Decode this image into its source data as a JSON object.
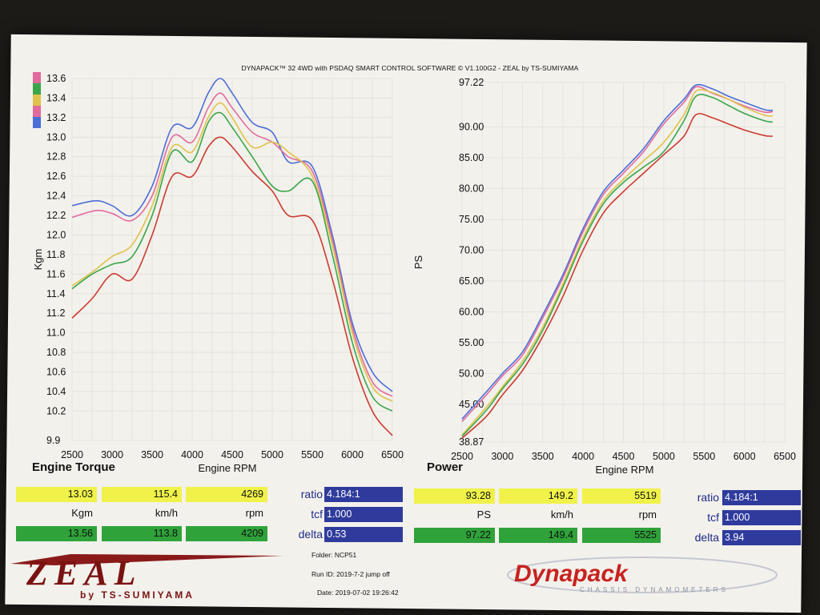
{
  "header": {
    "title": "DYNAPACK™ 32 4WD with PSDAQ SMART CONTROL SOFTWARE © V1.100G2 - ZEAL by TS-SUMIYAMA"
  },
  "chart_data": [
    {
      "type": "line",
      "title": "Engine Torque",
      "xlabel": "Engine RPM",
      "ylabel": "Kgm",
      "xlim": [
        2500,
        6500
      ],
      "ylim": [
        9.9,
        13.6
      ],
      "xticks": [
        "2500",
        "3000",
        "3500",
        "4000",
        "4500",
        "5000",
        "5500",
        "6000",
        "6500"
      ],
      "yticks": [
        "9.9",
        "10.2",
        "10.4",
        "10.6",
        "10.8",
        "11.0",
        "11.2",
        "11.4",
        "11.6",
        "11.8",
        "12.0",
        "12.2",
        "12.4",
        "12.6",
        "12.8",
        "13.0",
        "13.2",
        "13.4",
        "13.6"
      ],
      "series": [
        {
          "color": "#4a6ed6",
          "points": [
            [
              2500,
              12.3
            ],
            [
              2800,
              12.35
            ],
            [
              3000,
              12.3
            ],
            [
              3250,
              12.2
            ],
            [
              3500,
              12.5
            ],
            [
              3750,
              13.1
            ],
            [
              4000,
              13.1
            ],
            [
              4200,
              13.45
            ],
            [
              4350,
              13.6
            ],
            [
              4500,
              13.45
            ],
            [
              4750,
              13.15
            ],
            [
              5000,
              13.05
            ],
            [
              5200,
              12.75
            ],
            [
              5500,
              12.7
            ],
            [
              5750,
              12.0
            ],
            [
              6000,
              11.1
            ],
            [
              6250,
              10.6
            ],
            [
              6500,
              10.4
            ]
          ]
        },
        {
          "color": "#e36a9c",
          "points": [
            [
              2500,
              12.18
            ],
            [
              2800,
              12.25
            ],
            [
              3000,
              12.22
            ],
            [
              3250,
              12.15
            ],
            [
              3500,
              12.4
            ],
            [
              3750,
              13.0
            ],
            [
              4000,
              12.95
            ],
            [
              4200,
              13.3
            ],
            [
              4350,
              13.45
            ],
            [
              4500,
              13.3
            ],
            [
              4750,
              13.05
            ],
            [
              5000,
              12.95
            ],
            [
              5200,
              12.8
            ],
            [
              5500,
              12.65
            ],
            [
              5750,
              11.95
            ],
            [
              6000,
              11.05
            ],
            [
              6250,
              10.5
            ],
            [
              6500,
              10.35
            ]
          ]
        },
        {
          "color": "#e0c24a",
          "points": [
            [
              2500,
              11.48
            ],
            [
              2750,
              11.62
            ],
            [
              3000,
              11.78
            ],
            [
              3250,
              11.9
            ],
            [
              3500,
              12.3
            ],
            [
              3750,
              12.9
            ],
            [
              4000,
              12.85
            ],
            [
              4200,
              13.2
            ],
            [
              4350,
              13.35
            ],
            [
              4500,
              13.2
            ],
            [
              4750,
              12.9
            ],
            [
              5000,
              12.95
            ],
            [
              5200,
              12.85
            ],
            [
              5500,
              12.6
            ],
            [
              5750,
              11.9
            ],
            [
              6000,
              11.0
            ],
            [
              6250,
              10.45
            ],
            [
              6500,
              10.3
            ]
          ]
        },
        {
          "color": "#3aa64a",
          "points": [
            [
              2500,
              11.45
            ],
            [
              2750,
              11.6
            ],
            [
              3000,
              11.7
            ],
            [
              3250,
              11.78
            ],
            [
              3500,
              12.2
            ],
            [
              3750,
              12.85
            ],
            [
              4000,
              12.75
            ],
            [
              4200,
              13.15
            ],
            [
              4350,
              13.25
            ],
            [
              4500,
              13.1
            ],
            [
              4750,
              12.8
            ],
            [
              5000,
              12.5
            ],
            [
              5200,
              12.45
            ],
            [
              5500,
              12.55
            ],
            [
              5750,
              11.8
            ],
            [
              6000,
              10.9
            ],
            [
              6250,
              10.35
            ],
            [
              6500,
              10.2
            ]
          ]
        },
        {
          "color": "#cc3a30",
          "points": [
            [
              2500,
              11.15
            ],
            [
              2750,
              11.35
            ],
            [
              3000,
              11.6
            ],
            [
              3250,
              11.55
            ],
            [
              3500,
              12.0
            ],
            [
              3750,
              12.6
            ],
            [
              4000,
              12.6
            ],
            [
              4200,
              12.9
            ],
            [
              4350,
              13.0
            ],
            [
              4500,
              12.9
            ],
            [
              4750,
              12.65
            ],
            [
              5000,
              12.45
            ],
            [
              5200,
              12.2
            ],
            [
              5500,
              12.15
            ],
            [
              5750,
              11.55
            ],
            [
              6000,
              10.75
            ],
            [
              6250,
              10.2
            ],
            [
              6500,
              9.95
            ]
          ]
        }
      ]
    },
    {
      "type": "line",
      "title": "Power",
      "xlabel": "Engine RPM",
      "ylabel": "PS",
      "xlim": [
        2500,
        6500
      ],
      "ylim": [
        38.87,
        97.22
      ],
      "xticks": [
        "2500",
        "3000",
        "3500",
        "4000",
        "4500",
        "5000",
        "5500",
        "6000",
        "6500"
      ],
      "yticks": [
        "38.87",
        "45.00",
        "50.00",
        "55.00",
        "60.00",
        "65.00",
        "70.00",
        "75.00",
        "80.00",
        "85.00",
        "90.00",
        "97.22"
      ],
      "series": [
        {
          "color": "#4a6ed6",
          "points": [
            [
              2500,
              42.6
            ],
            [
              2800,
              47.0
            ],
            [
              3000,
              50.0
            ],
            [
              3250,
              53.5
            ],
            [
              3500,
              59.5
            ],
            [
              3750,
              66.0
            ],
            [
              4000,
              73.5
            ],
            [
              4250,
              79.5
            ],
            [
              4500,
              83.0
            ],
            [
              4750,
              86.5
            ],
            [
              5000,
              91.0
            ],
            [
              5250,
              94.5
            ],
            [
              5400,
              96.8
            ],
            [
              5600,
              96.2
            ],
            [
              5800,
              95.0
            ],
            [
              6000,
              94.0
            ],
            [
              6250,
              92.8
            ],
            [
              6350,
              92.7
            ]
          ]
        },
        {
          "color": "#e36a9c",
          "points": [
            [
              2500,
              42.2
            ],
            [
              2800,
              46.5
            ],
            [
              3000,
              49.6
            ],
            [
              3250,
              53.0
            ],
            [
              3500,
              59.0
            ],
            [
              3750,
              65.5
            ],
            [
              4000,
              73.0
            ],
            [
              4250,
              79.0
            ],
            [
              4500,
              82.5
            ],
            [
              4750,
              86.0
            ],
            [
              5000,
              90.5
            ],
            [
              5250,
              94.0
            ],
            [
              5400,
              96.5
            ],
            [
              5600,
              95.5
            ],
            [
              5800,
              94.5
            ],
            [
              6000,
              93.4
            ],
            [
              6250,
              92.4
            ],
            [
              6350,
              92.5
            ]
          ]
        },
        {
          "color": "#e0c24a",
          "points": [
            [
              2500,
              40.0
            ],
            [
              2800,
              44.5
            ],
            [
              3000,
              47.8
            ],
            [
              3250,
              52.0
            ],
            [
              3500,
              57.5
            ],
            [
              3750,
              64.5
            ],
            [
              4000,
              72.0
            ],
            [
              4250,
              78.0
            ],
            [
              4500,
              81.5
            ],
            [
              4750,
              84.5
            ],
            [
              5000,
              87.5
            ],
            [
              5250,
              92.0
            ],
            [
              5400,
              95.8
            ],
            [
              5600,
              95.6
            ],
            [
              5800,
              94.5
            ],
            [
              6000,
              93.2
            ],
            [
              6250,
              91.9
            ],
            [
              6350,
              91.8
            ]
          ]
        },
        {
          "color": "#3aa64a",
          "points": [
            [
              2500,
              39.8
            ],
            [
              2800,
              44.0
            ],
            [
              3000,
              47.5
            ],
            [
              3250,
              51.5
            ],
            [
              3500,
              57.0
            ],
            [
              3750,
              64.0
            ],
            [
              4000,
              71.5
            ],
            [
              4250,
              77.5
            ],
            [
              4500,
              81.0
            ],
            [
              4750,
              83.5
            ],
            [
              5000,
              86.0
            ],
            [
              5250,
              91.0
            ],
            [
              5400,
              95.0
            ],
            [
              5600,
              94.8
            ],
            [
              5800,
              93.5
            ],
            [
              6000,
              92.2
            ],
            [
              6250,
              91.0
            ],
            [
              6350,
              90.8
            ]
          ]
        },
        {
          "color": "#cc3a30",
          "points": [
            [
              2500,
              39.5
            ],
            [
              2800,
              43.0
            ],
            [
              3000,
              46.5
            ],
            [
              3250,
              50.5
            ],
            [
              3500,
              56.0
            ],
            [
              3750,
              62.5
            ],
            [
              4000,
              70.0
            ],
            [
              4250,
              76.0
            ],
            [
              4500,
              79.5
            ],
            [
              4750,
              82.5
            ],
            [
              5000,
              85.5
            ],
            [
              5250,
              88.5
            ],
            [
              5400,
              92.0
            ],
            [
              5600,
              91.5
            ],
            [
              5800,
              90.5
            ],
            [
              6000,
              89.5
            ],
            [
              6250,
              88.6
            ],
            [
              6350,
              88.5
            ]
          ]
        }
      ]
    }
  ],
  "torque_panel": {
    "row1": {
      "value": "13.03",
      "speed": "115.4",
      "rpm": "4269"
    },
    "units": {
      "value": "Kgm",
      "speed": "km/h",
      "rpm": "rpm"
    },
    "row2": {
      "value": "13.56",
      "speed": "113.8",
      "rpm": "4209"
    },
    "params": {
      "ratio_label": "ratio",
      "ratio": "4.184:1",
      "tcf_label": "tcf",
      "tcf": "1.000",
      "delta_label": "delta",
      "delta": "0.53"
    }
  },
  "power_panel": {
    "row1": {
      "value": "93.28",
      "speed": "149.2",
      "rpm": "5519"
    },
    "units": {
      "value": "PS",
      "speed": "km/h",
      "rpm": "rpm"
    },
    "row2": {
      "value": "97.22",
      "speed": "149.4",
      "rpm": "5525"
    },
    "params": {
      "ratio_label": "ratio",
      "ratio": "4.184:1",
      "tcf_label": "tcf",
      "tcf": "1.000",
      "delta_label": "delta",
      "delta": "3.94"
    }
  },
  "footer": {
    "folder": "Folder:  NCP51",
    "run_id": "Run ID:  2019-7-2 jump off",
    "date": "Date:  2019-07-02 19:26:42"
  },
  "logos": {
    "zeal": "ZEAL",
    "zeal_sub": "by TS-SUMIYAMA",
    "dynapack": "Dynapack",
    "dynapack_sub": "CHASSIS DYNAMOMETERS"
  },
  "legend_colors": [
    "#e36a9c",
    "#3aa64a",
    "#e0c24a",
    "#e36a9c",
    "#4a6ed6"
  ]
}
